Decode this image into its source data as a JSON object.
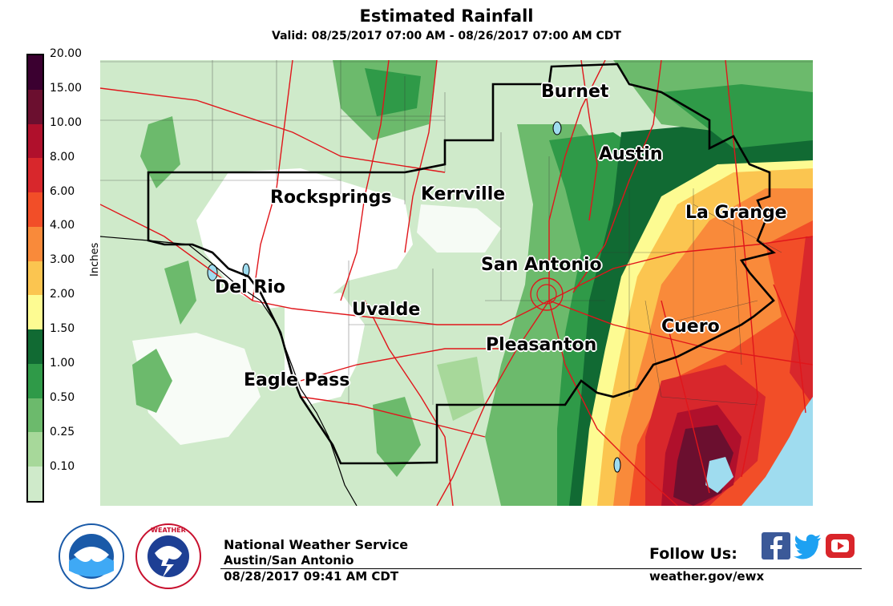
{
  "title": "Estimated Rainfall",
  "subtitle": "Valid: 08/25/2017 07:00 AM - 08/26/2017 07:00 AM CDT",
  "legend": {
    "unit": "Inches",
    "labels": [
      "20.00",
      "15.00",
      "10.00",
      "8.00",
      "6.00",
      "4.00",
      "3.00",
      "2.00",
      "1.50",
      "1.00",
      "0.50",
      "0.25",
      "0.10"
    ],
    "colors": [
      "#3b0030",
      "#6b0f2f",
      "#b0102c",
      "#d8272c",
      "#f24e28",
      "#f98a3a",
      "#fbc550",
      "#fdfb92",
      "#116a33",
      "#2f9a48",
      "#6cba6c",
      "#a7d89a",
      "#cfeaca"
    ]
  },
  "cities": {
    "burnet": "Burnet",
    "austin": "Austin",
    "rocksprings": "Rocksprings",
    "kerrville": "Kerrville",
    "la_grange": "La Grange",
    "san_antonio": "San Antonio",
    "del_rio": "Del Rio",
    "uvalde": "Uvalde",
    "cuero": "Cuero",
    "pleasanton": "Pleasanton",
    "eagle_pass": "Eagle Pass"
  },
  "footer": {
    "office": "National Weather Service",
    "location": "Austin/San Antonio",
    "issued": "08/28/2017 09:41 AM CDT",
    "follow": "Follow Us:",
    "website": "weather.gov/ewx"
  },
  "logos": {
    "noaa": "noaa-logo",
    "nws": "nws-logo",
    "facebook": "facebook-icon",
    "twitter": "twitter-icon",
    "youtube": "youtube-icon"
  }
}
